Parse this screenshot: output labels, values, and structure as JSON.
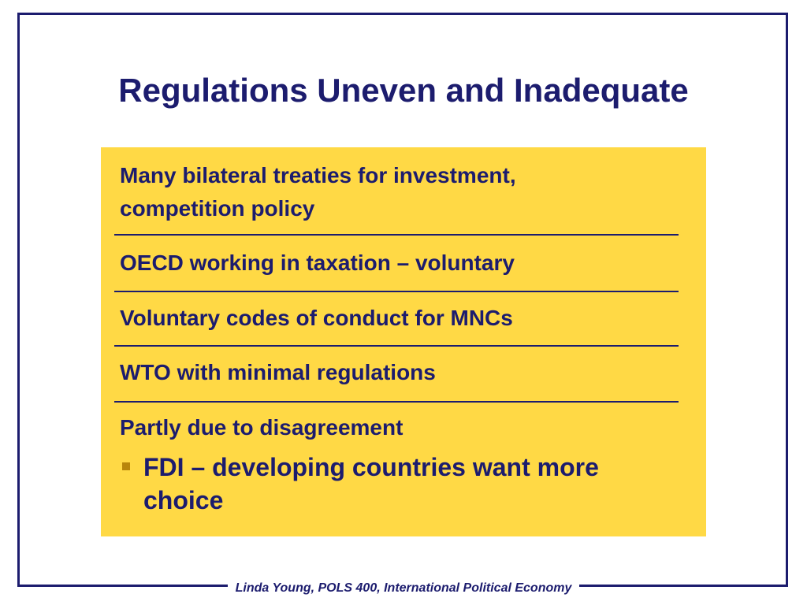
{
  "slide": {
    "title": "Regulations Uneven and Inadequate",
    "items": [
      {
        "line1": "Many bilateral treaties for investment,",
        "line2": "competition policy"
      },
      {
        "line1": "OECD working in taxation – voluntary"
      },
      {
        "line1": "Voluntary codes of conduct for MNCs"
      },
      {
        "line1": "WTO with minimal regulations"
      },
      {
        "line1": "Partly due to disagreement"
      }
    ],
    "bullet": {
      "line1": " FDI – developing countries want more",
      "line2": "choice"
    },
    "footer": "Linda Young, POLS 400, International Political Economy"
  },
  "colors": {
    "accent": "#1c1c6e",
    "box_fill": "#ffd945",
    "bullet_marker": "#b8860b"
  }
}
